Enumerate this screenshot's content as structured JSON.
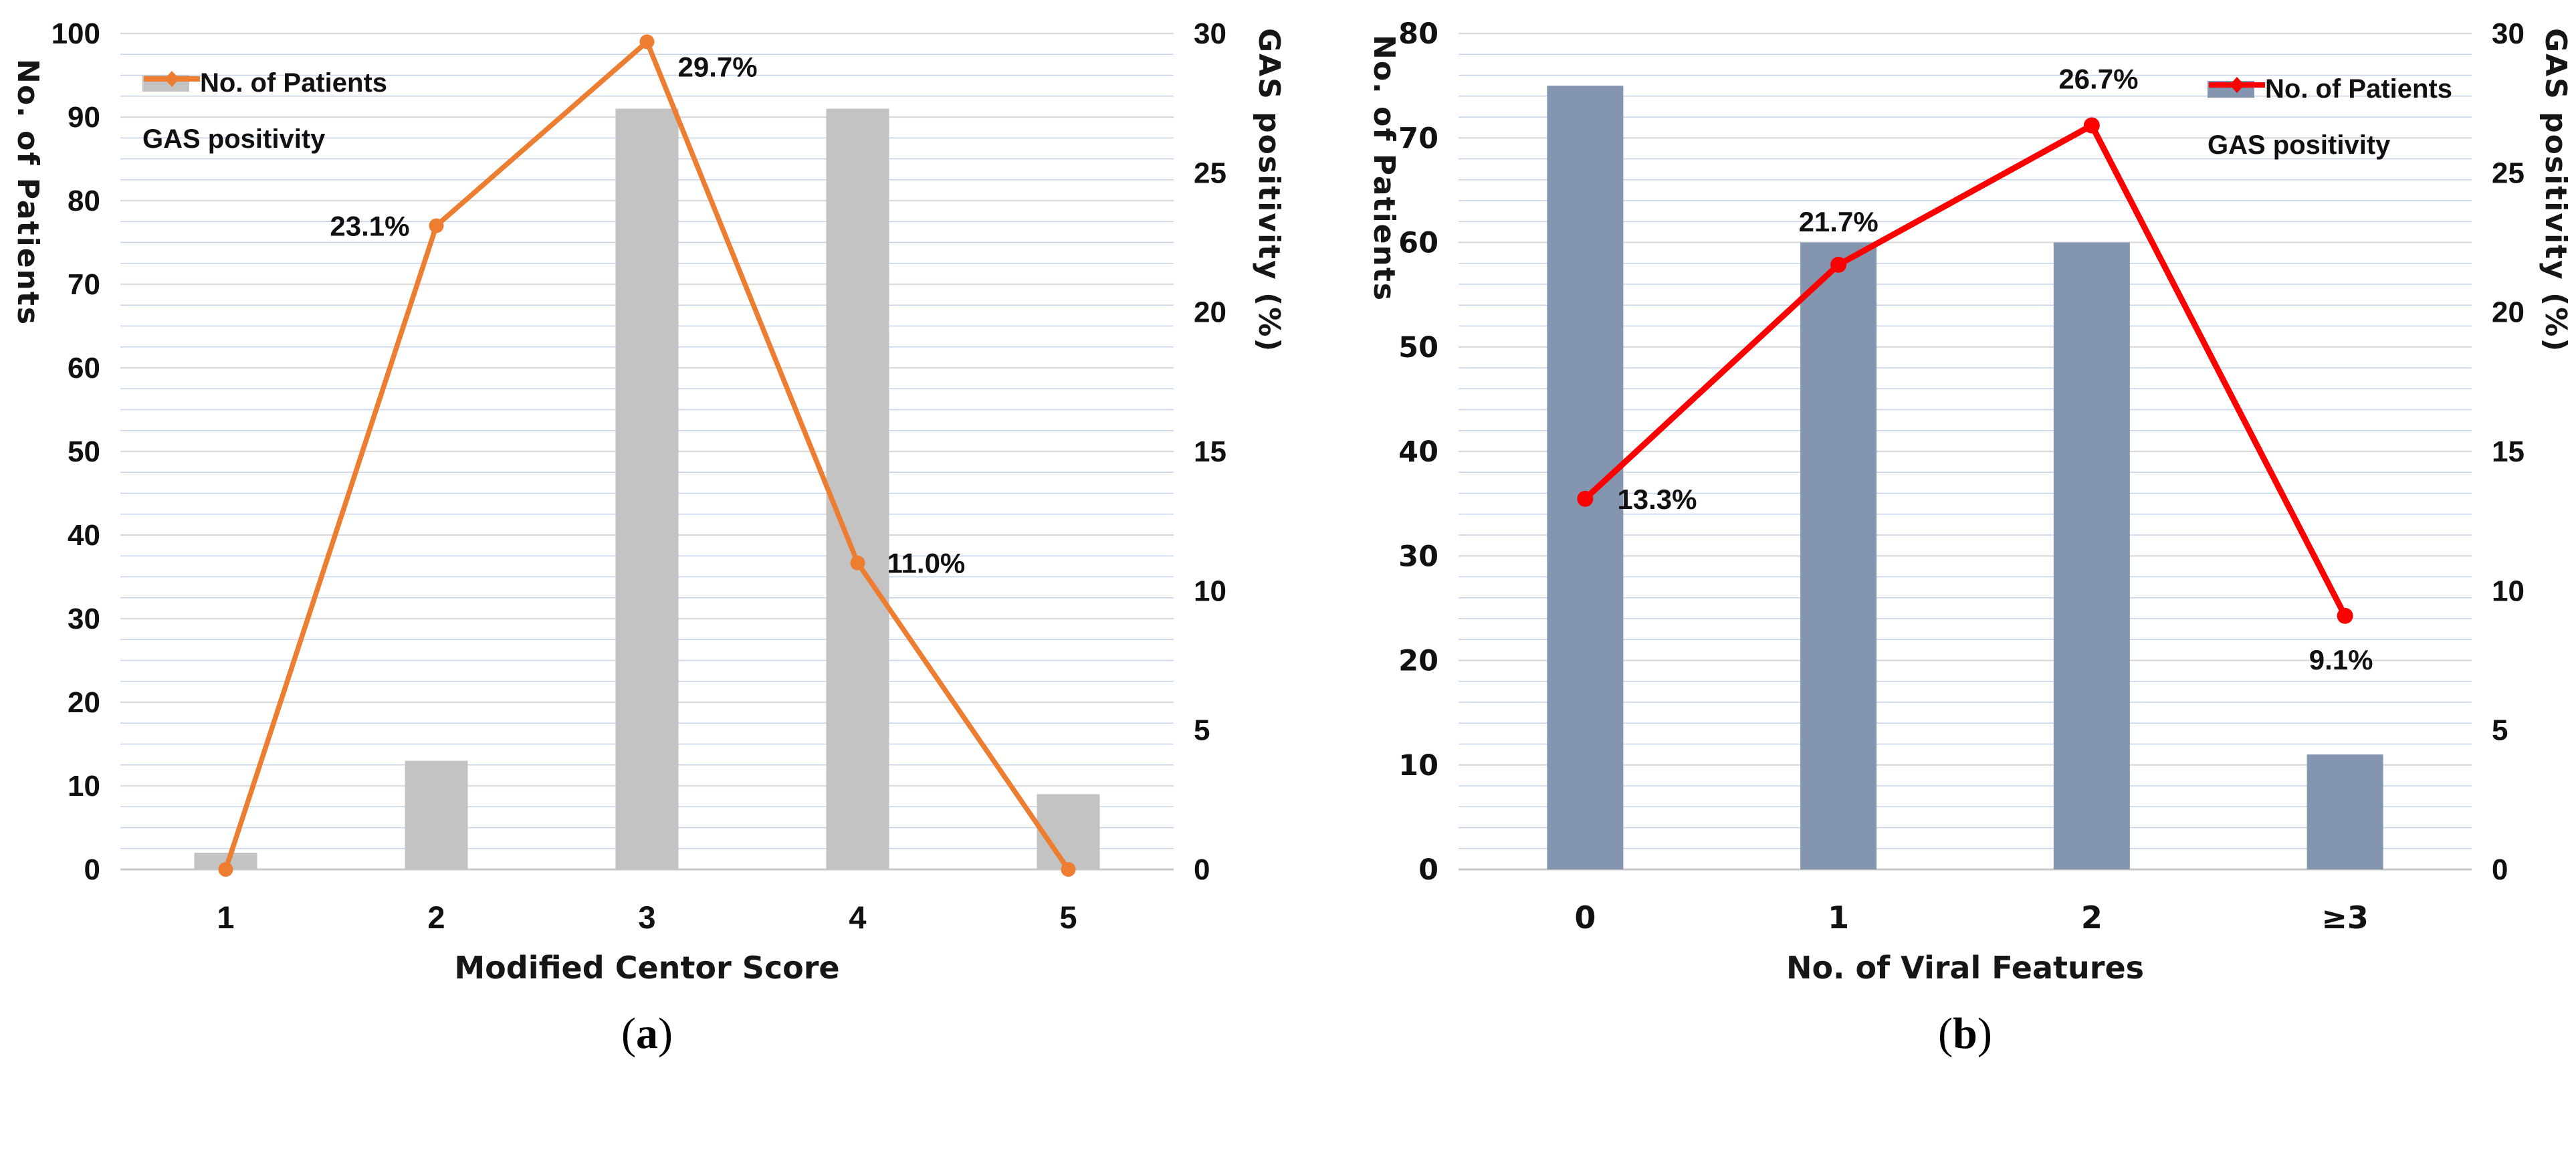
{
  "figure": {
    "panel_count": 2,
    "colors": {
      "gray_bar": "#c3c3c3",
      "bluegray_bar": "#8496af",
      "orange_line": "#ed7d31",
      "red_line": "#fd0000",
      "minor_grid": "#c5d2e8",
      "major_grid": "#d9d9d9",
      "axis_line": "#c9c9c9"
    }
  },
  "chart_data": [
    {
      "type": "bar+line",
      "caption": "(a)",
      "categories": [
        "1",
        "2",
        "3",
        "4",
        "5"
      ],
      "xlabel": "Modified Centor Score",
      "ylabel_left": "No. of Patients",
      "ylabel_right": "GAS positivity (%)",
      "ylim_left": [
        0,
        100
      ],
      "yticks_left": [
        0,
        10,
        20,
        30,
        40,
        50,
        60,
        70,
        80,
        90,
        100
      ],
      "minor_step_left": 2.5,
      "ylim_right": [
        0,
        30
      ],
      "yticks_right": [
        0,
        5,
        10,
        15,
        20,
        25,
        30
      ],
      "grid": "major+minor",
      "legend_position": "upper-left",
      "legend": [
        "No. of Patients",
        "GAS positivity"
      ],
      "series": [
        {
          "name": "No. of Patients",
          "type": "bar",
          "axis": "left",
          "color": "#c3c3c3",
          "values": [
            2,
            13,
            91,
            91,
            9
          ]
        },
        {
          "name": "GAS positivity",
          "type": "line",
          "axis": "right",
          "color": "#ed7d31",
          "values": [
            0.0,
            23.1,
            29.7,
            11.0,
            0.0
          ],
          "point_labels": [
            "",
            "23.1%",
            "29.7%",
            "11.0%",
            ""
          ]
        }
      ]
    },
    {
      "type": "bar+line",
      "caption": "(b)",
      "categories": [
        "0",
        "1",
        "2",
        "≥3"
      ],
      "xlabel": "No. of Viral Features",
      "ylabel_left": "No. of Patients",
      "ylabel_right": "GAS positivity (%)",
      "ylim_left": [
        0,
        80
      ],
      "yticks_left": [
        0,
        10,
        20,
        30,
        40,
        50,
        60,
        70,
        80
      ],
      "minor_step_left": 2,
      "ylim_right": [
        0,
        30
      ],
      "yticks_right": [
        0,
        5,
        10,
        15,
        20,
        25,
        30
      ],
      "grid": "major+minor",
      "legend_position": "upper-right",
      "legend": [
        "No. of Patients",
        "GAS positivity"
      ],
      "series": [
        {
          "name": "No. of Patients",
          "type": "bar",
          "axis": "left",
          "color": "#8496af",
          "values": [
            75,
            60,
            60,
            11
          ]
        },
        {
          "name": "GAS positivity",
          "type": "line",
          "axis": "right",
          "color": "#fd0000",
          "values": [
            13.3,
            21.7,
            26.7,
            9.1
          ],
          "point_labels": [
            "13.3%",
            "21.7%",
            "26.7%",
            "9.1%"
          ]
        }
      ]
    }
  ]
}
